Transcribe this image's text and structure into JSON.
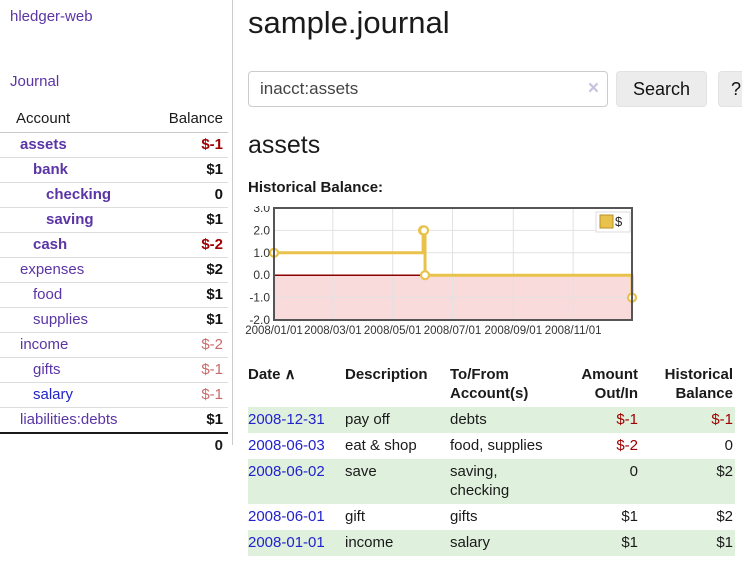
{
  "app": {
    "brand": "hledger-web"
  },
  "nav": {
    "journal": "Journal"
  },
  "sidebar": {
    "account_header": "Account",
    "balance_header": "Balance",
    "accounts": [
      {
        "name": "assets",
        "level": 1,
        "balance": "$-1",
        "bold": true,
        "balance_class": "neg-bold"
      },
      {
        "name": "bank",
        "level": 2,
        "balance": "$1",
        "bold": true,
        "balance_class": "pos-bold"
      },
      {
        "name": "checking",
        "level": 3,
        "balance": "0",
        "bold": true,
        "balance_class": "pos-bold"
      },
      {
        "name": "saving",
        "level": 3,
        "balance": "$1",
        "bold": true,
        "balance_class": "pos-bold"
      },
      {
        "name": "cash",
        "level": 2,
        "balance": "$-2",
        "bold": true,
        "balance_class": "neg-bold"
      },
      {
        "name": "expenses",
        "level": 1,
        "balance": "$2",
        "bold": false,
        "balance_class": "pos-bold"
      },
      {
        "name": "food",
        "level": 2,
        "balance": "$1",
        "bold": false,
        "balance_class": "pos-bold"
      },
      {
        "name": "supplies",
        "level": 2,
        "balance": "$1",
        "bold": false,
        "balance_class": "pos-bold"
      },
      {
        "name": "income",
        "level": 1,
        "balance": "$-2",
        "bold": false,
        "balance_class": "neg-light"
      },
      {
        "name": "gifts",
        "level": 2,
        "balance": "$-1",
        "bold": false,
        "balance_class": "neg-light"
      },
      {
        "name": "salary",
        "level": 2,
        "balance": "$-1",
        "bold": false,
        "balance_class": "neg-light",
        "link_class": "blue"
      },
      {
        "name": "liabilities:debts",
        "level": 1,
        "balance": "$1",
        "bold": false,
        "balance_class": "pos-bold"
      }
    ],
    "total": "0"
  },
  "main": {
    "title": "sample.journal",
    "search": {
      "value": "inacct:assets",
      "clear_icon": "×",
      "button": "Search",
      "help": "?"
    },
    "account_heading": "assets",
    "chart_label": "Historical Balance:"
  },
  "chart_data": {
    "type": "line",
    "step": true,
    "title": "Historical Balance:",
    "x_range": [
      "2008-01-01",
      "2008-12-31"
    ],
    "x_tick_labels": [
      "2008/01/01",
      "2008/03/01",
      "2008/05/01",
      "2008/07/01",
      "2008/09/01",
      "2008/11/01"
    ],
    "ylim": [
      -2,
      3
    ],
    "y_tick_labels": [
      "3.0",
      "2.0",
      "1.0",
      "0.0",
      "-1.0",
      "-2.0"
    ],
    "series": [
      {
        "name": "$",
        "color": "#e8c24a",
        "points": [
          [
            "2008-01-01",
            1
          ],
          [
            "2008-06-01",
            2
          ],
          [
            "2008-06-02",
            2
          ],
          [
            "2008-06-03",
            0
          ],
          [
            "2008-12-31",
            -1
          ]
        ]
      }
    ],
    "legend": {
      "label": "$",
      "position": "top-right"
    },
    "grid": true,
    "negative_region_color": "#f9dbdb",
    "zero_line_color": "#8b0000"
  },
  "table": {
    "headers": [
      {
        "label": "Date",
        "sort_icon": "∧",
        "align": "left"
      },
      {
        "label": "Description",
        "align": "left"
      },
      {
        "label": "To/From\nAccount(s)",
        "align": "left"
      },
      {
        "label": "Amount\nOut/In",
        "align": "right"
      },
      {
        "label": "Historical\nBalance",
        "align": "right"
      }
    ],
    "rows": [
      {
        "date": "2008-12-31",
        "description": "pay off",
        "accounts": "debts",
        "amount": "$-1",
        "amount_neg": true,
        "balance": "$-1",
        "balance_neg": true
      },
      {
        "date": "2008-06-03",
        "description": "eat & shop",
        "accounts": "food, supplies",
        "amount": "$-2",
        "amount_neg": true,
        "balance": "0",
        "balance_neg": false
      },
      {
        "date": "2008-06-02",
        "description": "save",
        "accounts": "saving,\nchecking",
        "amount": "0",
        "amount_neg": false,
        "balance": "$2",
        "balance_neg": false
      },
      {
        "date": "2008-06-01",
        "description": "gift",
        "accounts": "gifts",
        "amount": "$1",
        "amount_neg": false,
        "balance": "$2",
        "balance_neg": false
      },
      {
        "date": "2008-01-01",
        "description": "income",
        "accounts": "salary",
        "amount": "$1",
        "amount_neg": false,
        "balance": "$1",
        "balance_neg": false
      }
    ]
  },
  "colors": {
    "link_purple": "#5b35a5",
    "link_blue": "#2222cc",
    "negative_dark": "#a00000",
    "negative_light": "#c96a6a",
    "row_green": "#dff0dd",
    "accent_gold": "#e8c24a",
    "negative_region": "#f9dbdb",
    "zero_line": "#8b0000"
  }
}
